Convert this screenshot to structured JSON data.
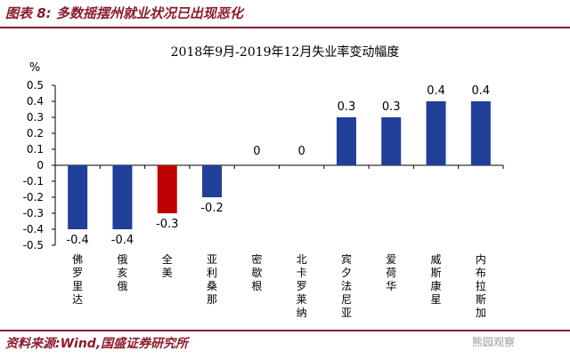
{
  "figure_title": "图表 8:  多数摇摆州就业状况已出现恶化",
  "source_text": "资料来源:Wind,国盛证券研究所",
  "watermark": "熊园观察",
  "colors": {
    "bar_blue": "#1f3f99",
    "bar_red": "#c00000",
    "accent": "#8c1c2c"
  },
  "chart_data": {
    "type": "bar",
    "title": "2018年9月-2019年12月失业率变动幅度",
    "ylabel": "%",
    "ylim": [
      -0.5,
      0.5
    ],
    "ytick_step": 0.1,
    "ytick_labels": [
      "0.5",
      "0.4",
      "0.3",
      "0.2",
      "0.1",
      "0",
      "-0.1",
      "-0.2",
      "-0.3",
      "-0.4",
      "-0.5"
    ],
    "categories": [
      "佛罗里达",
      "俄亥俄",
      "全美",
      "亚利桑那",
      "密歇根",
      "北卡罗莱纳",
      "宾夕法尼亚",
      "爱荷华",
      "威斯康星",
      "内布拉斯加"
    ],
    "values": [
      -0.4,
      -0.4,
      -0.3,
      -0.2,
      0,
      0,
      0.3,
      0.3,
      0.4,
      0.4
    ],
    "data_labels": [
      "-0.4",
      "-0.4",
      "-0.3",
      "-0.2",
      "0",
      "0",
      "0.3",
      "0.3",
      "0.4",
      "0.4"
    ],
    "highlight_category": "全美",
    "grid": false,
    "legend": "none"
  }
}
